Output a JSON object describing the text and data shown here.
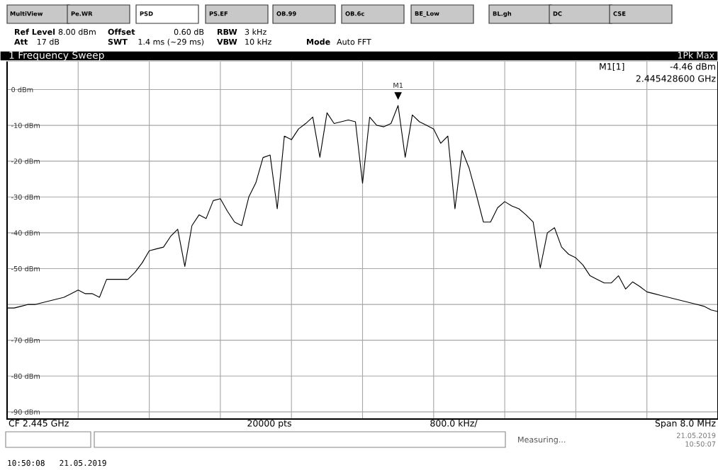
{
  "chart_data": {
    "type": "line",
    "title": "1 Frequency Sweep",
    "categories": [
      null,
      null,
      null,
      null,
      null,
      null,
      null,
      null,
      null,
      null,
      null,
      null,
      null,
      null,
      null,
      null,
      null,
      null,
      null,
      null,
      null,
      null,
      null,
      null,
      null,
      null,
      null,
      null,
      null,
      null,
      null,
      null,
      null,
      null,
      null,
      null,
      null,
      null,
      null,
      null,
      null,
      null,
      null,
      null,
      null,
      null,
      null,
      null,
      null,
      null,
      null,
      null,
      null,
      null,
      null,
      null,
      null,
      null,
      null,
      null,
      null,
      null,
      null,
      null,
      null,
      null,
      null,
      null,
      null,
      null,
      null,
      null,
      null,
      null,
      null,
      null,
      null,
      null,
      null,
      null,
      null,
      null,
      null,
      null,
      null,
      null,
      null,
      null,
      null,
      null,
      null,
      null,
      null,
      null,
      null,
      null,
      null,
      null,
      null,
      null,
      null
    ],
    "series": [
      {
        "color": "#000000",
        "values": [
          -61,
          -61,
          -60.5,
          -60,
          -60,
          -59.5,
          -59,
          -58.5,
          -58,
          -57,
          -56,
          -57,
          -57,
          -58,
          -53,
          -53,
          -53,
          -53,
          -51,
          -48.4,
          -45,
          -44.5,
          -44,
          -41,
          -39,
          -49.4,
          -38,
          -35,
          -36,
          -31,
          -30.5,
          -34,
          -37,
          -38,
          -30,
          -26,
          -19,
          -18.3,
          -33.3,
          -13,
          -14,
          -11,
          -9.5,
          -7.7,
          -18.9,
          -6.5,
          -9.5,
          -9,
          -8.5,
          -9,
          -26.2,
          -7.7,
          -10,
          -10.4,
          -9.5,
          -4.46,
          -18.9,
          -7.1,
          -9,
          -10,
          -11,
          -15,
          -13,
          -33.3,
          -17,
          -22,
          -29.3,
          -37,
          -37,
          -33,
          -31.3,
          -32.5,
          -33.3,
          -35,
          -37,
          -49.8,
          -40,
          -38.6,
          -44,
          -46,
          -47,
          -49,
          -52,
          -53,
          -54,
          -54,
          -52,
          -55.7,
          -53.7,
          -55,
          -56.5,
          -57,
          -57.5,
          -58,
          -58.5,
          -59,
          -59.5,
          -60,
          -60.5,
          -61.5,
          -62
        ]
      }
    ],
    "ylim": [
      -92,
      8
    ],
    "yticks": [
      {
        "value": 0,
        "label": "0 dBm"
      },
      {
        "value": -10,
        "label": "-10 dBm"
      },
      {
        "value": -20,
        "label": "-20 dBm"
      },
      {
        "value": -30,
        "label": "-30 dBm"
      },
      {
        "value": -40,
        "label": "-40 dBm"
      },
      {
        "value": -50,
        "label": "-50 dBm"
      },
      {
        "value": -60,
        "label": null
      },
      {
        "value": -70,
        "label": "-70 dBm"
      },
      {
        "value": -80,
        "label": "-80 dBm"
      },
      {
        "value": -90,
        "label": "-90 dBm"
      }
    ],
    "grid": true,
    "annotations": [
      "MultiView",
      "Pe.WR",
      "PSD",
      "PS.EF",
      "OB.99",
      "OB.6c",
      "BE_Low",
      "BL.gh",
      "DC",
      "CSE",
      "Ref Level",
      "8.00 dBm",
      "Offset",
      "0.60 dB",
      "RBW",
      "3 kHz",
      "Att",
      "17 dB",
      "SWT",
      "1.4 ms (~29 ms)",
      "VBW",
      "10 kHz",
      "Mode",
      "Auto FFT",
      "1Pk Max",
      "M1[1]",
      "-4.46 dBm",
      "2.445428600 GHz",
      "CF 2.445 GHz",
      "20000 pts",
      "800.0 kHz/",
      "Span 8.0 MHz",
      "Measuring...",
      "21.05.2019",
      "10:50:07",
      "10:50:08   21.05.2019",
      {
        "text": "M1",
        "y": -4.46
      }
    ]
  }
}
